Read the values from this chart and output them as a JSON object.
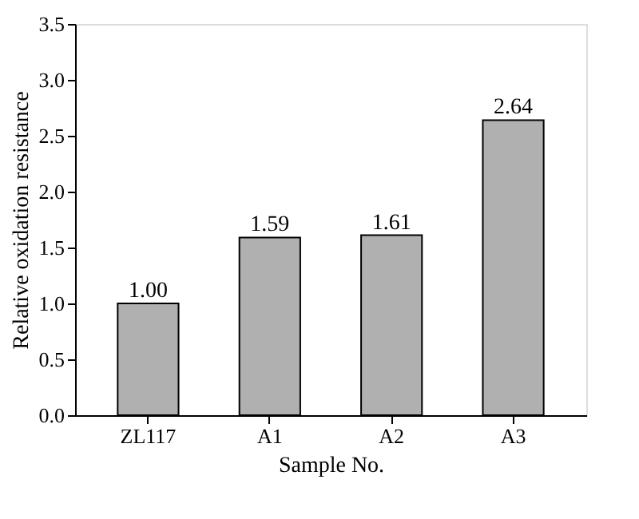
{
  "chart_data": {
    "type": "bar",
    "xlabel": "Sample No.",
    "ylabel": "Relative oxidation resistance",
    "categories": [
      "ZL117",
      "A1",
      "A2",
      "A3"
    ],
    "values": [
      1.0,
      1.59,
      1.61,
      2.64
    ],
    "value_labels": [
      "1.00",
      "1.59",
      "1.61",
      "2.64"
    ],
    "color": "#b0b0b0",
    "ylim": [
      0,
      3.5
    ],
    "yticks": [
      {
        "value": 0,
        "label": "0.0"
      },
      {
        "value": 0.5,
        "label": "0.5"
      },
      {
        "value": 1,
        "label": "1.0"
      },
      {
        "value": 1.5,
        "label": "1.5"
      },
      {
        "value": 2,
        "label": "2.0"
      },
      {
        "value": 2.5,
        "label": "2.5"
      },
      {
        "value": 3,
        "label": "3.0"
      },
      {
        "value": 3.5,
        "label": "3.5"
      }
    ],
    "grid": false
  }
}
